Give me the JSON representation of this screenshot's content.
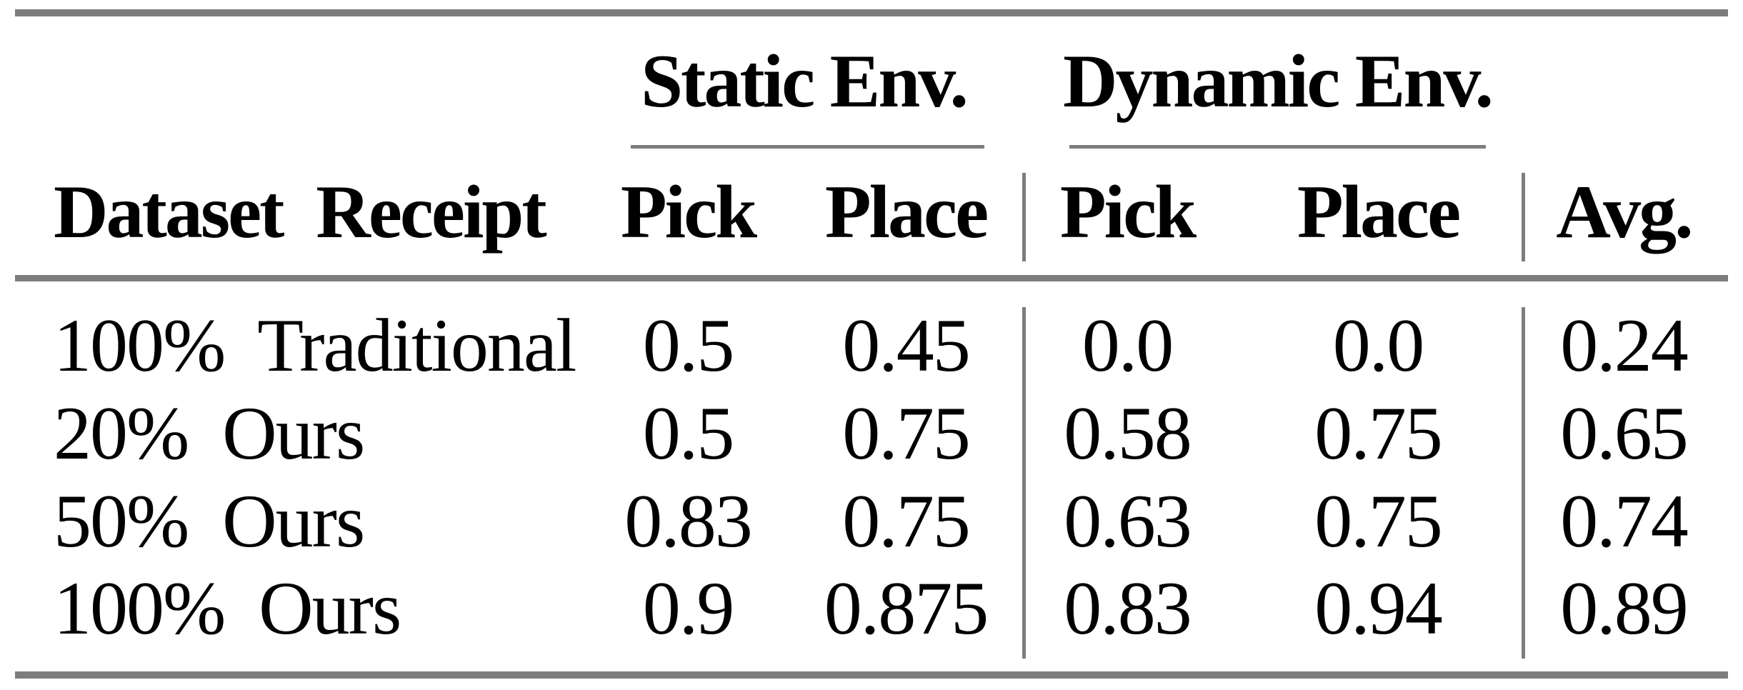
{
  "table": {
    "group_headers": [
      {
        "label": "Static Env."
      },
      {
        "label": "Dynamic Env."
      }
    ],
    "columns": [
      "Dataset Receipt",
      "Pick",
      "Place",
      "Pick",
      "Place",
      "Avg."
    ],
    "rows": [
      {
        "label": "100% Traditional",
        "values": [
          "0.5",
          "0.45",
          "0.0",
          "0.0",
          "0.24"
        ]
      },
      {
        "label": "20% Ours",
        "values": [
          "0.5",
          "0.75",
          "0.58",
          "0.75",
          "0.65"
        ]
      },
      {
        "label": "50% Ours",
        "values": [
          "0.83",
          "0.75",
          "0.63",
          "0.75",
          "0.74"
        ]
      },
      {
        "label": "100% Ours",
        "values": [
          "0.9",
          "0.875",
          "0.83",
          "0.94",
          "0.89"
        ]
      }
    ],
    "colors": {
      "rule_gray": "#7d7d7d",
      "text_black": "#000000",
      "background": "#ffffff"
    }
  },
  "chart_data": {
    "type": "table",
    "title": "",
    "column_groups": [
      "Static Env.",
      "Dynamic Env."
    ],
    "columns": [
      "Dataset Receipt",
      "Static Pick",
      "Static Place",
      "Dynamic Pick",
      "Dynamic Place",
      "Avg."
    ],
    "rows": [
      [
        "100% Traditional",
        0.5,
        0.45,
        0.0,
        0.0,
        0.24
      ],
      [
        "20% Ours",
        0.5,
        0.75,
        0.58,
        0.75,
        0.65
      ],
      [
        "50% Ours",
        0.83,
        0.75,
        0.63,
        0.75,
        0.74
      ],
      [
        "100% Ours",
        0.9,
        0.875,
        0.83,
        0.94,
        0.89
      ]
    ]
  }
}
